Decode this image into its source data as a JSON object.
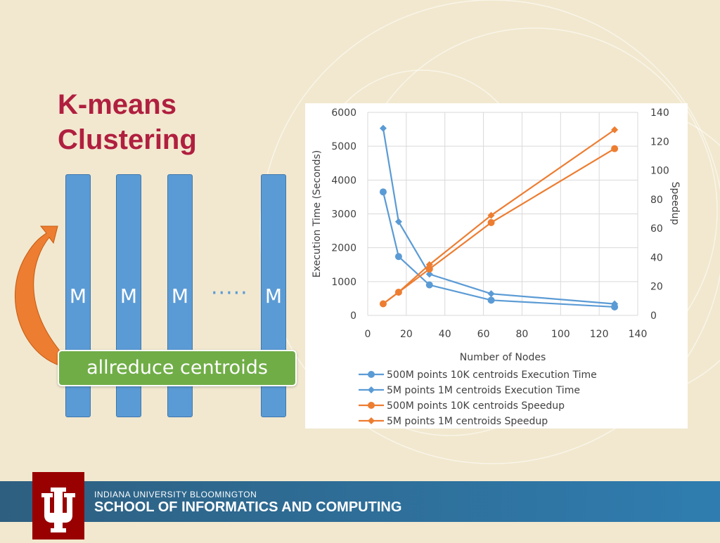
{
  "slide": {
    "title_line1": "K-means",
    "title_line2": "Clustering",
    "mappers": [
      "M",
      "M",
      "M",
      "M"
    ],
    "dots": "·····",
    "allreduce_label": "allreduce centroids",
    "colors": {
      "title": "#b01f3f",
      "bar": "#5b9bd5",
      "allreduce": "#70ad47",
      "arrow": "#ed7d31"
    }
  },
  "footer": {
    "university": "INDIANA UNIVERSITY BLOOMINGTON",
    "school": "SCHOOL OF INFORMATICS AND COMPUTING"
  },
  "chart_data": {
    "type": "line",
    "title": "",
    "xlabel": "Number of Nodes",
    "ylabel": "Execution Time (Seconds)",
    "y2label": "Speedup",
    "xlim": [
      0,
      140
    ],
    "ylim": [
      0,
      6000
    ],
    "y2lim": [
      0,
      140
    ],
    "xticks": [
      0,
      20,
      40,
      60,
      80,
      100,
      120,
      140
    ],
    "yticks": [
      0,
      1000,
      2000,
      3000,
      4000,
      5000,
      6000
    ],
    "y2ticks": [
      0,
      20,
      40,
      60,
      80,
      100,
      120,
      140
    ],
    "grid": true,
    "legend": "bottom",
    "series": [
      {
        "name": "500M points 10K centroids Execution Time",
        "axis": "left",
        "color": "#5b9bd5",
        "marker": "circle",
        "x": [
          8,
          16,
          32,
          64,
          128
        ],
        "y": [
          3650,
          1740,
          900,
          450,
          250
        ]
      },
      {
        "name": "5M points 1M centroids Execution Time",
        "axis": "left",
        "color": "#5b9bd5",
        "marker": "diamond",
        "x": [
          8,
          16,
          32,
          64,
          128
        ],
        "y": [
          5530,
          2770,
          1220,
          640,
          340
        ]
      },
      {
        "name": "500M points 10K centroids Speedup",
        "axis": "right",
        "color": "#ed7d31",
        "marker": "circle",
        "x": [
          8,
          16,
          32,
          64,
          128
        ],
        "y": [
          8,
          16,
          32,
          64,
          115
        ]
      },
      {
        "name": "5M points 1M centroids Speedup",
        "axis": "right",
        "color": "#ed7d31",
        "marker": "diamond",
        "x": [
          8,
          16,
          32,
          64,
          128
        ],
        "y": [
          8,
          16,
          35,
          69,
          128
        ]
      }
    ]
  }
}
